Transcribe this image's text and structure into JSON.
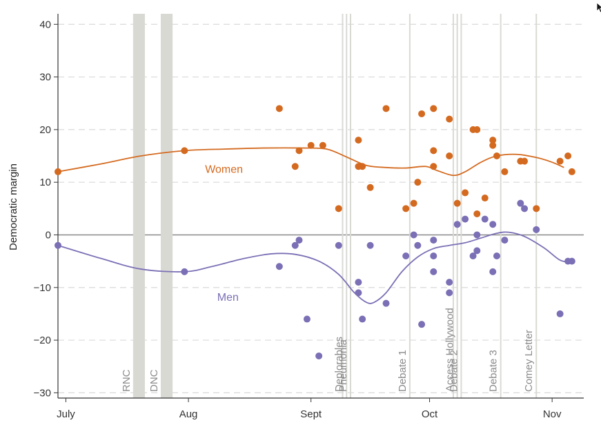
{
  "colors": {
    "women": "#d46a1f",
    "men": "#7b6fb5",
    "event_line": "#d9d9d4",
    "grid": "#d9d9d9",
    "zero_line": "#888888",
    "axis": "#333333"
  },
  "icons": {
    "cursor": "mouse-pointer-icon"
  },
  "chart_data": {
    "type": "scatter",
    "ylabel": "Democratic margin",
    "xlabel": "",
    "ylim": [
      -31,
      42
    ],
    "xlim": [
      "2016-06-29",
      "2016-11-09"
    ],
    "y_ticks": [
      40,
      30,
      20,
      10,
      0,
      -10,
      -20,
      -30
    ],
    "y_tick_labels": [
      "40",
      "30",
      "20",
      "10",
      "0",
      "−10",
      "−20",
      "−30"
    ],
    "x_ticks": [
      {
        "date": "2016-07-01",
        "label": "July"
      },
      {
        "date": "2016-08-01",
        "label": "Aug"
      },
      {
        "date": "2016-09-01",
        "label": "Sept"
      },
      {
        "date": "2016-10-01",
        "label": "Oct"
      },
      {
        "date": "2016-11-01",
        "label": "Nov"
      }
    ],
    "grid": "horizontal dashed",
    "events": [
      {
        "label": "RNC",
        "start": "2016-07-18",
        "end": "2016-07-21",
        "band": true
      },
      {
        "label": "DNC",
        "start": "2016-07-25",
        "end": "2016-07-28",
        "band": true
      },
      {
        "label": "Deplorables",
        "start": "2016-09-09",
        "end": "2016-09-10",
        "band": true
      },
      {
        "label": "Pneumonia",
        "start": "2016-09-11",
        "end": "2016-09-11",
        "band": false
      },
      {
        "label": "Debate 1",
        "start": "2016-09-26",
        "end": "2016-09-26",
        "band": false
      },
      {
        "label": "Access Hollywood",
        "start": "2016-10-07",
        "end": "2016-10-08",
        "band": true
      },
      {
        "label": "Debate 2",
        "start": "2016-10-09",
        "end": "2016-10-09",
        "band": false
      },
      {
        "label": "Debate 3",
        "start": "2016-10-19",
        "end": "2016-10-19",
        "band": false
      },
      {
        "label": "Comey Letter",
        "start": "2016-10-28",
        "end": "2016-10-28",
        "band": false
      }
    ],
    "series": [
      {
        "name": "Women",
        "color": "#d46a1f",
        "points": [
          [
            "2016-06-29",
            12
          ],
          [
            "2016-07-31",
            16
          ],
          [
            "2016-08-24",
            24
          ],
          [
            "2016-08-28",
            13
          ],
          [
            "2016-08-29",
            16
          ],
          [
            "2016-09-01",
            17
          ],
          [
            "2016-09-04",
            17
          ],
          [
            "2016-09-08",
            5
          ],
          [
            "2016-09-13",
            18
          ],
          [
            "2016-09-13",
            13
          ],
          [
            "2016-09-14",
            13
          ],
          [
            "2016-09-16",
            9
          ],
          [
            "2016-09-20",
            24
          ],
          [
            "2016-09-25",
            5
          ],
          [
            "2016-09-27",
            6
          ],
          [
            "2016-09-28",
            10
          ],
          [
            "2016-09-29",
            23
          ],
          [
            "2016-10-02",
            24
          ],
          [
            "2016-10-02",
            16
          ],
          [
            "2016-10-02",
            13
          ],
          [
            "2016-10-06",
            22
          ],
          [
            "2016-10-06",
            15
          ],
          [
            "2016-10-08",
            6
          ],
          [
            "2016-10-10",
            8
          ],
          [
            "2016-10-12",
            20
          ],
          [
            "2016-10-13",
            20
          ],
          [
            "2016-10-13",
            4
          ],
          [
            "2016-10-15",
            7
          ],
          [
            "2016-10-17",
            18
          ],
          [
            "2016-10-17",
            17
          ],
          [
            "2016-10-18",
            15
          ],
          [
            "2016-10-20",
            12
          ],
          [
            "2016-10-24",
            14
          ],
          [
            "2016-10-25",
            14
          ],
          [
            "2016-10-28",
            5
          ],
          [
            "2016-11-03",
            14
          ],
          [
            "2016-11-05",
            15
          ],
          [
            "2016-11-06",
            12
          ]
        ],
        "trend": [
          [
            "2016-06-29",
            12
          ],
          [
            "2016-07-10",
            13.5
          ],
          [
            "2016-07-20",
            15
          ],
          [
            "2016-07-31",
            16
          ],
          [
            "2016-08-10",
            16.3
          ],
          [
            "2016-08-20",
            16.5
          ],
          [
            "2016-08-30",
            16.5
          ],
          [
            "2016-09-05",
            16.3
          ],
          [
            "2016-09-10",
            14.8
          ],
          [
            "2016-09-15",
            13.2
          ],
          [
            "2016-09-20",
            12.8
          ],
          [
            "2016-09-25",
            12.7
          ],
          [
            "2016-09-30",
            13
          ],
          [
            "2016-10-03",
            12.2
          ],
          [
            "2016-10-07",
            11.3
          ],
          [
            "2016-10-10",
            12
          ],
          [
            "2016-10-14",
            13.8
          ],
          [
            "2016-10-18",
            15
          ],
          [
            "2016-10-23",
            15.3
          ],
          [
            "2016-10-28",
            14.7
          ],
          [
            "2016-11-01",
            13.8
          ],
          [
            "2016-11-04",
            12.8
          ]
        ]
      },
      {
        "name": "Men",
        "color": "#7b6fb5",
        "points": [
          [
            "2016-06-29",
            -2
          ],
          [
            "2016-07-31",
            -7
          ],
          [
            "2016-08-24",
            -6
          ],
          [
            "2016-08-28",
            -2
          ],
          [
            "2016-08-29",
            -1
          ],
          [
            "2016-08-31",
            -16
          ],
          [
            "2016-09-03",
            -23
          ],
          [
            "2016-09-08",
            -2
          ],
          [
            "2016-09-13",
            -9
          ],
          [
            "2016-09-13",
            -11
          ],
          [
            "2016-09-14",
            -16
          ],
          [
            "2016-09-16",
            -2
          ],
          [
            "2016-09-20",
            -13
          ],
          [
            "2016-09-25",
            -4
          ],
          [
            "2016-09-27",
            0
          ],
          [
            "2016-09-28",
            -2
          ],
          [
            "2016-09-29",
            -17
          ],
          [
            "2016-10-02",
            -1
          ],
          [
            "2016-10-02",
            -4
          ],
          [
            "2016-10-02",
            -7
          ],
          [
            "2016-10-06",
            -9
          ],
          [
            "2016-10-06",
            -11
          ],
          [
            "2016-10-08",
            2
          ],
          [
            "2016-10-10",
            3
          ],
          [
            "2016-10-12",
            -4
          ],
          [
            "2016-10-13",
            -3
          ],
          [
            "2016-10-13",
            0
          ],
          [
            "2016-10-15",
            3
          ],
          [
            "2016-10-17",
            2
          ],
          [
            "2016-10-17",
            -7
          ],
          [
            "2016-10-18",
            -4
          ],
          [
            "2016-10-20",
            -1
          ],
          [
            "2016-10-24",
            6
          ],
          [
            "2016-10-25",
            5
          ],
          [
            "2016-10-28",
            1
          ],
          [
            "2016-11-03",
            -15
          ],
          [
            "2016-11-05",
            -5
          ],
          [
            "2016-11-06",
            -5
          ]
        ],
        "trend": [
          [
            "2016-06-29",
            -2
          ],
          [
            "2016-07-10",
            -4.5
          ],
          [
            "2016-07-20",
            -6.5
          ],
          [
            "2016-07-31",
            -7
          ],
          [
            "2016-08-07",
            -6
          ],
          [
            "2016-08-15",
            -4.5
          ],
          [
            "2016-08-22",
            -3.6
          ],
          [
            "2016-08-28",
            -3.7
          ],
          [
            "2016-09-03",
            -5
          ],
          [
            "2016-09-08",
            -7.5
          ],
          [
            "2016-09-12",
            -11
          ],
          [
            "2016-09-15",
            -12.8
          ],
          [
            "2016-09-17",
            -12.8
          ],
          [
            "2016-09-20",
            -11
          ],
          [
            "2016-09-24",
            -7
          ],
          [
            "2016-09-28",
            -4.2
          ],
          [
            "2016-10-02",
            -2.6
          ],
          [
            "2016-10-06",
            -2
          ],
          [
            "2016-10-10",
            -1.5
          ],
          [
            "2016-10-14",
            -0.6
          ],
          [
            "2016-10-18",
            0.3
          ],
          [
            "2016-10-21",
            0.5
          ],
          [
            "2016-10-25",
            -0.3
          ],
          [
            "2016-10-30",
            -2.5
          ],
          [
            "2016-11-03",
            -4.8
          ],
          [
            "2016-11-06",
            -5.2
          ]
        ]
      }
    ],
    "annotations": [
      {
        "text": "Women",
        "series": "Women",
        "date": "2016-08-10",
        "y": 11.8
      },
      {
        "text": "Men",
        "series": "Men",
        "date": "2016-08-11",
        "y": -12.5
      }
    ]
  }
}
